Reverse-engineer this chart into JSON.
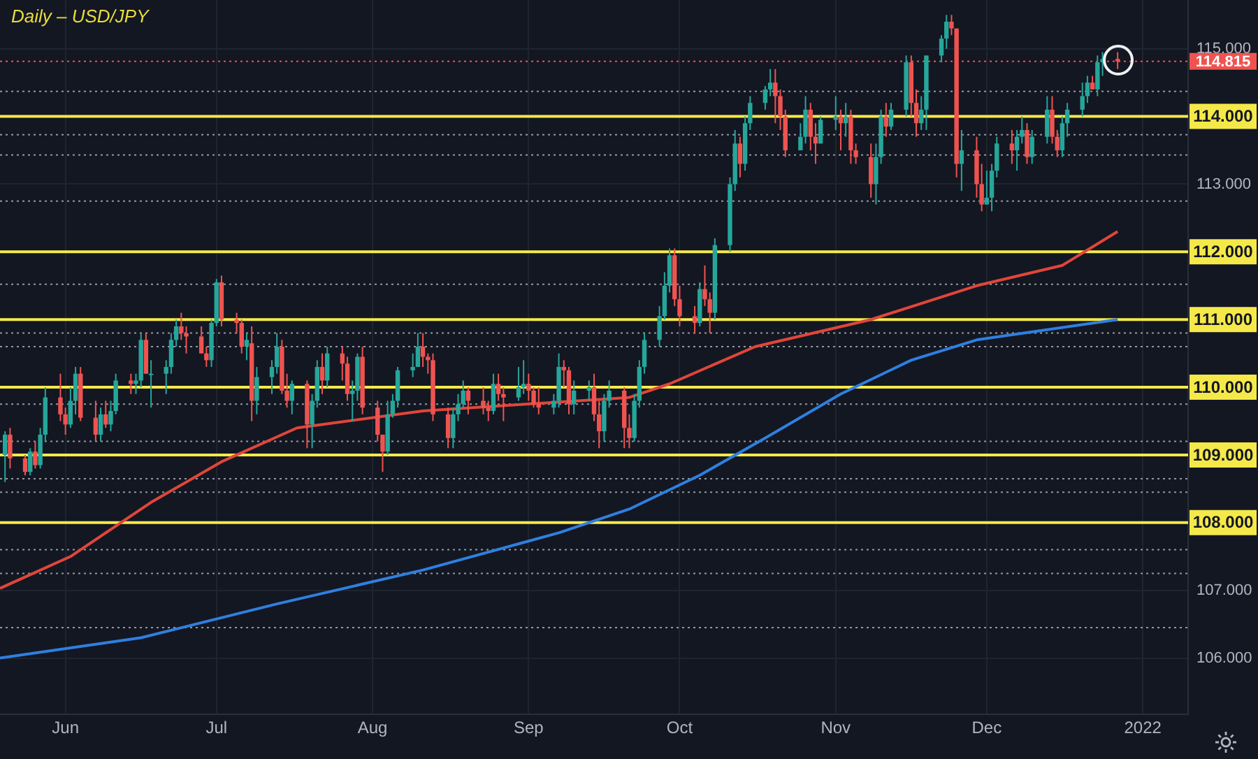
{
  "chart_data": {
    "type": "candlestick",
    "title": "Daily – USD/JPY",
    "x": [
      "2021-05-20",
      "2021-05-21",
      "2021-05-24",
      "2021-05-25",
      "2021-05-26",
      "2021-05-27",
      "2021-05-28",
      "2021-05-31",
      "2021-06-01",
      "2021-06-02",
      "2021-06-03",
      "2021-06-04",
      "2021-06-07",
      "2021-06-08",
      "2021-06-09",
      "2021-06-10",
      "2021-06-11",
      "2021-06-14",
      "2021-06-15",
      "2021-06-16",
      "2021-06-17",
      "2021-06-18",
      "2021-06-21",
      "2021-06-22",
      "2021-06-23",
      "2021-06-24",
      "2021-06-25",
      "2021-06-28",
      "2021-06-29",
      "2021-06-30",
      "2021-07-01",
      "2021-07-02",
      "2021-07-05",
      "2021-07-06",
      "2021-07-07",
      "2021-07-08",
      "2021-07-09",
      "2021-07-12",
      "2021-07-13",
      "2021-07-14",
      "2021-07-15",
      "2021-07-16",
      "2021-07-19",
      "2021-07-20",
      "2021-07-21",
      "2021-07-22",
      "2021-07-23",
      "2021-07-26",
      "2021-07-27",
      "2021-07-28",
      "2021-07-29",
      "2021-07-30",
      "2021-08-02",
      "2021-08-03",
      "2021-08-04",
      "2021-08-05",
      "2021-08-06",
      "2021-08-09",
      "2021-08-10",
      "2021-08-11",
      "2021-08-12",
      "2021-08-13",
      "2021-08-16",
      "2021-08-17",
      "2021-08-18",
      "2021-08-19",
      "2021-08-20",
      "2021-08-23",
      "2021-08-24",
      "2021-08-25",
      "2021-08-26",
      "2021-08-27",
      "2021-08-30",
      "2021-08-31",
      "2021-09-01",
      "2021-09-02",
      "2021-09-03",
      "2021-09-06",
      "2021-09-07",
      "2021-09-08",
      "2021-09-09",
      "2021-09-10",
      "2021-09-13",
      "2021-09-14",
      "2021-09-15",
      "2021-09-16",
      "2021-09-17",
      "2021-09-20",
      "2021-09-21",
      "2021-09-22",
      "2021-09-23",
      "2021-09-24",
      "2021-09-27",
      "2021-09-28",
      "2021-09-29",
      "2021-09-30",
      "2021-10-01",
      "2021-10-04",
      "2021-10-05",
      "2021-10-06",
      "2021-10-07",
      "2021-10-08",
      "2021-10-11",
      "2021-10-12",
      "2021-10-13",
      "2021-10-14",
      "2021-10-15",
      "2021-10-18",
      "2021-10-19",
      "2021-10-20",
      "2021-10-21",
      "2021-10-22",
      "2021-10-25",
      "2021-10-26",
      "2021-10-27",
      "2021-10-28",
      "2021-10-29",
      "2021-11-01",
      "2021-11-02",
      "2021-11-03",
      "2021-11-04",
      "2021-11-05",
      "2021-11-08",
      "2021-11-09",
      "2021-11-10",
      "2021-11-11",
      "2021-11-12",
      "2021-11-15",
      "2021-11-16",
      "2021-11-17",
      "2021-11-18",
      "2021-11-19",
      "2021-11-22",
      "2021-11-23",
      "2021-11-24",
      "2021-11-25",
      "2021-11-26",
      "2021-11-29",
      "2021-11-30",
      "2021-12-01",
      "2021-12-02",
      "2021-12-03",
      "2021-12-06",
      "2021-12-07",
      "2021-12-08",
      "2021-12-09",
      "2021-12-10",
      "2021-12-13",
      "2021-12-14",
      "2021-12-15",
      "2021-12-16",
      "2021-12-17",
      "2021-12-20",
      "2021-12-21",
      "2021-12-22",
      "2021-12-23",
      "2021-12-24",
      "2021-12-27"
    ],
    "ohlc": [
      [
        109.0,
        109.35,
        108.6,
        109.3
      ],
      [
        109.3,
        109.4,
        108.8,
        108.95
      ],
      [
        108.95,
        109.0,
        108.7,
        108.75
      ],
      [
        108.75,
        109.1,
        108.7,
        109.05
      ],
      [
        109.05,
        109.2,
        108.8,
        108.85
      ],
      [
        108.85,
        109.4,
        108.8,
        109.3
      ],
      [
        109.3,
        110.0,
        109.2,
        109.85
      ],
      [
        109.85,
        110.2,
        109.5,
        109.6
      ],
      [
        109.6,
        109.7,
        109.3,
        109.45
      ],
      [
        109.45,
        110.0,
        109.4,
        109.8
      ],
      [
        109.8,
        110.3,
        109.6,
        110.2
      ],
      [
        110.2,
        110.3,
        109.5,
        109.55
      ],
      [
        109.55,
        109.8,
        109.2,
        109.3
      ],
      [
        109.3,
        109.7,
        109.2,
        109.6
      ],
      [
        109.6,
        109.8,
        109.4,
        109.45
      ],
      [
        109.45,
        109.8,
        109.35,
        109.65
      ],
      [
        109.65,
        110.2,
        109.6,
        110.1
      ],
      [
        110.1,
        110.2,
        109.9,
        110.05
      ],
      [
        110.05,
        110.2,
        109.9,
        110.1
      ],
      [
        110.1,
        110.8,
        110.0,
        110.7
      ],
      [
        110.7,
        110.8,
        110.2,
        110.2
      ],
      [
        110.2,
        110.4,
        109.7,
        110.2
      ],
      [
        110.2,
        110.4,
        109.9,
        110.3
      ],
      [
        110.3,
        110.8,
        110.2,
        110.7
      ],
      [
        110.7,
        111.0,
        110.6,
        110.9
      ],
      [
        110.9,
        111.1,
        110.7,
        110.8
      ],
      [
        110.8,
        110.9,
        110.5,
        110.75
      ],
      [
        110.75,
        110.9,
        110.5,
        110.5
      ],
      [
        110.5,
        110.6,
        110.3,
        110.4
      ],
      [
        110.4,
        111.0,
        110.3,
        110.95
      ],
      [
        110.95,
        111.6,
        110.9,
        111.55
      ],
      [
        111.55,
        111.65,
        110.9,
        111.0
      ],
      [
        111.0,
        111.1,
        110.8,
        110.95
      ],
      [
        110.95,
        111.0,
        110.5,
        110.6
      ],
      [
        110.6,
        110.8,
        110.4,
        110.7
      ],
      [
        110.65,
        110.9,
        109.5,
        109.8
      ],
      [
        109.8,
        110.3,
        109.6,
        110.15
      ],
      [
        110.15,
        110.4,
        109.9,
        110.3
      ],
      [
        110.3,
        110.8,
        110.2,
        110.6
      ],
      [
        110.6,
        110.7,
        109.9,
        109.95
      ],
      [
        109.95,
        110.2,
        109.7,
        109.8
      ],
      [
        109.8,
        110.1,
        109.6,
        110.05
      ],
      [
        110.05,
        110.1,
        109.1,
        109.45
      ],
      [
        109.45,
        109.9,
        109.1,
        109.8
      ],
      [
        109.8,
        110.4,
        109.7,
        110.3
      ],
      [
        110.3,
        110.5,
        109.9,
        110.1
      ],
      [
        110.1,
        110.6,
        110.0,
        110.5
      ],
      [
        110.5,
        110.6,
        110.1,
        110.35
      ],
      [
        110.35,
        110.45,
        109.8,
        109.9
      ],
      [
        109.9,
        110.1,
        109.5,
        109.95
      ],
      [
        109.95,
        110.5,
        109.8,
        110.45
      ],
      [
        110.45,
        110.6,
        109.6,
        109.7
      ],
      [
        109.7,
        109.8,
        109.2,
        109.3
      ],
      [
        109.3,
        109.3,
        108.75,
        109.05
      ],
      [
        109.05,
        109.8,
        109.0,
        109.6
      ],
      [
        109.6,
        109.9,
        109.55,
        109.8
      ],
      [
        109.8,
        110.3,
        109.7,
        110.25
      ],
      [
        110.25,
        110.5,
        110.15,
        110.3
      ],
      [
        110.3,
        110.8,
        110.3,
        110.6
      ],
      [
        110.6,
        110.8,
        110.3,
        110.45
      ],
      [
        110.45,
        110.5,
        110.2,
        110.4
      ],
      [
        110.4,
        110.5,
        109.5,
        109.6
      ],
      [
        109.6,
        109.7,
        109.1,
        109.25
      ],
      [
        109.25,
        109.7,
        109.1,
        109.6
      ],
      [
        109.6,
        109.9,
        109.5,
        109.75
      ],
      [
        109.75,
        110.1,
        109.7,
        109.95
      ],
      [
        109.95,
        110.0,
        109.6,
        109.8
      ],
      [
        109.8,
        110.0,
        109.6,
        109.7
      ],
      [
        109.7,
        109.8,
        109.5,
        109.65
      ],
      [
        109.65,
        110.2,
        109.6,
        110.05
      ],
      [
        110.05,
        110.2,
        109.8,
        109.9
      ],
      [
        109.9,
        110.0,
        109.5,
        109.85
      ],
      [
        109.85,
        110.3,
        109.8,
        110.0
      ],
      [
        110.0,
        110.4,
        109.9,
        110.05
      ],
      [
        110.05,
        110.2,
        109.8,
        109.95
      ],
      [
        109.95,
        110.0,
        109.7,
        109.75
      ],
      [
        109.75,
        110.0,
        109.6,
        109.7
      ],
      [
        109.7,
        109.9,
        109.6,
        109.8
      ],
      [
        109.8,
        110.5,
        109.7,
        110.3
      ],
      [
        110.3,
        110.4,
        110.0,
        110.25
      ],
      [
        110.25,
        110.3,
        109.6,
        109.75
      ],
      [
        109.75,
        110.1,
        109.6,
        109.95
      ],
      [
        109.95,
        110.1,
        109.8,
        110.0
      ],
      [
        110.0,
        110.2,
        109.5,
        109.6
      ],
      [
        109.6,
        109.8,
        109.1,
        109.35
      ],
      [
        109.35,
        109.9,
        109.2,
        109.8
      ],
      [
        109.8,
        110.1,
        109.7,
        109.95
      ],
      [
        109.95,
        110.0,
        109.1,
        109.4
      ],
      [
        109.4,
        109.6,
        109.1,
        109.25
      ],
      [
        109.25,
        109.9,
        109.2,
        109.8
      ],
      [
        109.8,
        110.4,
        109.7,
        110.3
      ],
      [
        110.3,
        110.8,
        110.2,
        110.7
      ],
      [
        110.7,
        111.2,
        110.6,
        111.05
      ],
      [
        111.05,
        111.7,
        111.0,
        111.5
      ],
      [
        111.5,
        112.05,
        111.4,
        111.95
      ],
      [
        111.95,
        112.05,
        111.2,
        111.3
      ],
      [
        111.3,
        111.5,
        110.9,
        111.05
      ],
      [
        111.05,
        111.2,
        110.8,
        110.95
      ],
      [
        110.95,
        111.55,
        110.9,
        111.45
      ],
      [
        111.45,
        111.8,
        111.2,
        111.3
      ],
      [
        111.3,
        111.4,
        110.8,
        111.1
      ],
      [
        111.1,
        112.2,
        111.0,
        112.1
      ],
      [
        112.1,
        113.1,
        112.0,
        113.0
      ],
      [
        113.0,
        113.8,
        112.9,
        113.6
      ],
      [
        113.6,
        113.7,
        113.1,
        113.3
      ],
      [
        113.3,
        114.0,
        113.2,
        113.9
      ],
      [
        113.9,
        114.3,
        113.8,
        114.2
      ],
      [
        114.2,
        114.45,
        114.1,
        114.4
      ],
      [
        114.4,
        114.7,
        114.3,
        114.5
      ],
      [
        114.5,
        114.7,
        113.9,
        114.3
      ],
      [
        114.3,
        114.4,
        113.8,
        114.0
      ],
      [
        114.0,
        114.1,
        113.4,
        113.5
      ],
      [
        113.5,
        113.9,
        113.5,
        113.7
      ],
      [
        113.7,
        114.3,
        113.6,
        114.1
      ],
      [
        114.1,
        114.2,
        113.5,
        113.7
      ],
      [
        113.7,
        113.9,
        113.3,
        113.6
      ],
      [
        113.6,
        114.0,
        113.6,
        113.95
      ],
      [
        113.95,
        114.3,
        113.8,
        114.0
      ],
      [
        114.0,
        114.1,
        113.5,
        113.9
      ],
      [
        113.9,
        114.2,
        113.7,
        114.0
      ],
      [
        114.0,
        114.1,
        113.3,
        113.5
      ],
      [
        113.5,
        113.6,
        113.3,
        113.4
      ],
      [
        113.4,
        113.6,
        112.8,
        113.0
      ],
      [
        113.0,
        113.6,
        112.7,
        113.4
      ],
      [
        113.4,
        114.1,
        113.3,
        114.0
      ],
      [
        114.0,
        114.2,
        113.7,
        113.85
      ],
      [
        113.85,
        114.2,
        113.8,
        114.1
      ],
      [
        114.1,
        114.9,
        114.0,
        114.8
      ],
      [
        114.8,
        114.9,
        114.0,
        114.2
      ],
      [
        114.2,
        114.4,
        113.7,
        113.9
      ],
      [
        113.9,
        114.3,
        113.8,
        114.1
      ],
      [
        114.1,
        114.9,
        113.8,
        114.9
      ],
      [
        114.9,
        115.2,
        114.8,
        115.15
      ],
      [
        115.15,
        115.5,
        115.0,
        115.4
      ],
      [
        115.4,
        115.5,
        115.2,
        115.3
      ],
      [
        115.3,
        115.3,
        113.1,
        113.3
      ],
      [
        113.3,
        113.8,
        112.9,
        113.5
      ],
      [
        113.5,
        113.7,
        112.8,
        113.0
      ],
      [
        113.0,
        113.3,
        112.6,
        112.7
      ],
      [
        112.7,
        113.2,
        112.7,
        112.8
      ],
      [
        112.8,
        113.3,
        112.6,
        113.2
      ],
      [
        113.2,
        113.7,
        113.1,
        113.6
      ],
      [
        113.6,
        113.8,
        113.3,
        113.5
      ],
      [
        113.5,
        113.8,
        113.2,
        113.7
      ],
      [
        113.7,
        114.0,
        113.6,
        113.8
      ],
      [
        113.8,
        113.9,
        113.3,
        113.4
      ],
      [
        113.4,
        113.8,
        113.3,
        113.7
      ],
      [
        113.7,
        114.3,
        113.6,
        114.1
      ],
      [
        114.1,
        114.3,
        113.6,
        113.7
      ],
      [
        113.7,
        113.8,
        113.4,
        113.5
      ],
      [
        113.5,
        114.0,
        113.4,
        113.9
      ],
      [
        113.9,
        114.2,
        113.7,
        114.1
      ],
      [
        114.1,
        114.5,
        114.0,
        114.3
      ],
      [
        114.3,
        114.6,
        114.2,
        114.5
      ],
      [
        114.5,
        114.6,
        114.4,
        114.4
      ],
      [
        114.4,
        114.9,
        114.3,
        114.8
      ],
      [
        114.8,
        114.95,
        114.6,
        114.85
      ],
      [
        114.85,
        114.95,
        114.7,
        114.815
      ]
    ],
    "series": [
      {
        "type": "line",
        "color": "#e0463a",
        "x": [
          "2021-05-19",
          "2021-06-02",
          "2021-06-18",
          "2021-07-02",
          "2021-07-17",
          "2021-08-11",
          "2021-09-21",
          "2021-09-29",
          "2021-10-16",
          "2021-11-08",
          "2021-11-29",
          "2021-12-16",
          "2021-12-27"
        ],
        "values": [
          107.03,
          107.5,
          108.3,
          108.9,
          109.4,
          109.65,
          109.85,
          110.05,
          110.6,
          111.0,
          111.5,
          111.8,
          112.3
        ]
      },
      {
        "type": "line",
        "color": "#2f7fe0",
        "x": [
          "2021-05-19",
          "2021-06-16",
          "2021-07-13",
          "2021-08-11",
          "2021-09-07",
          "2021-09-21",
          "2021-10-05",
          "2021-10-18",
          "2021-11-02",
          "2021-11-16",
          "2021-11-29",
          "2021-12-13",
          "2021-12-27"
        ],
        "values": [
          106.0,
          106.3,
          106.8,
          107.3,
          107.85,
          108.2,
          108.7,
          109.25,
          109.9,
          110.4,
          110.7,
          110.85,
          111.0
        ]
      }
    ],
    "xlim": [
      "2021-05-19",
      "2022-01-10"
    ],
    "xticks": [
      {
        "value": "2021-06-01",
        "label": "Jun"
      },
      {
        "value": "2021-07-01",
        "label": "Jul"
      },
      {
        "value": "2021-08-01",
        "label": "Aug"
      },
      {
        "value": "2021-09-01",
        "label": "Sep"
      },
      {
        "value": "2021-10-01",
        "label": "Oct"
      },
      {
        "value": "2021-11-01",
        "label": "Nov"
      },
      {
        "value": "2021-12-01",
        "label": "Dec"
      },
      {
        "value": "2022-01-01",
        "label": "2022"
      }
    ],
    "ylim": [
      105.17,
      115.72
    ],
    "yticks": [
      {
        "value": 106,
        "label": "106.000"
      },
      {
        "value": 107,
        "label": "107.000"
      },
      {
        "value": 108,
        "label": null
      },
      {
        "value": 109,
        "label": null
      },
      {
        "value": 110,
        "label": null
      },
      {
        "value": 111,
        "label": null
      },
      {
        "value": 112,
        "label": null
      },
      {
        "value": 113,
        "label": "113.000"
      },
      {
        "value": 114,
        "label": null
      },
      {
        "value": 115,
        "label": "115.000"
      }
    ],
    "grid": true,
    "legend": false,
    "ref_lines": [
      {
        "axis": "y",
        "value": 114,
        "label": "114.000",
        "color": "#f5e94a",
        "line_style": "solid"
      },
      {
        "axis": "y",
        "value": 112,
        "label": "112.000",
        "color": "#f5e94a",
        "line_style": "solid"
      },
      {
        "axis": "y",
        "value": 111,
        "label": "111.000",
        "color": "#f5e94a",
        "line_style": "solid"
      },
      {
        "axis": "y",
        "value": 110,
        "label": "110.000",
        "color": "#f5e94a",
        "line_style": "solid"
      },
      {
        "axis": "y",
        "value": 109,
        "label": "109.000",
        "color": "#f5e94a",
        "line_style": "solid"
      },
      {
        "axis": "y",
        "value": 108,
        "label": "108.000",
        "color": "#f5e94a",
        "line_style": "solid"
      },
      {
        "axis": "y",
        "value": 114.815,
        "label": "114.815",
        "color": "#ef5350",
        "line_style": "dotted"
      },
      {
        "axis": "y",
        "value": 114.37,
        "color": "#9598a1",
        "line_style": "dotted"
      },
      {
        "axis": "y",
        "value": 113.73,
        "color": "#9598a1",
        "line_style": "dotted"
      },
      {
        "axis": "y",
        "value": 113.43,
        "color": "#9598a1",
        "line_style": "dotted"
      },
      {
        "axis": "y",
        "value": 112.75,
        "color": "#9598a1",
        "line_style": "dotted"
      },
      {
        "axis": "y",
        "value": 111.52,
        "color": "#9598a1",
        "line_style": "dotted"
      },
      {
        "axis": "y",
        "value": 110.8,
        "color": "#9598a1",
        "line_style": "dotted"
      },
      {
        "axis": "y",
        "value": 110.6,
        "color": "#9598a1",
        "line_style": "dotted"
      },
      {
        "axis": "y",
        "value": 109.75,
        "color": "#9598a1",
        "line_style": "dotted"
      },
      {
        "axis": "y",
        "value": 109.2,
        "color": "#9598a1",
        "line_style": "dotted"
      },
      {
        "axis": "y",
        "value": 108.65,
        "color": "#9598a1",
        "line_style": "dotted"
      },
      {
        "axis": "y",
        "value": 108.45,
        "color": "#9598a1",
        "line_style": "dotted"
      },
      {
        "axis": "y",
        "value": 107.6,
        "color": "#9598a1",
        "line_style": "dotted"
      },
      {
        "axis": "y",
        "value": 107.25,
        "color": "#9598a1",
        "line_style": "dotted"
      },
      {
        "axis": "y",
        "value": 106.45,
        "color": "#9598a1",
        "line_style": "dotted"
      }
    ]
  }
}
